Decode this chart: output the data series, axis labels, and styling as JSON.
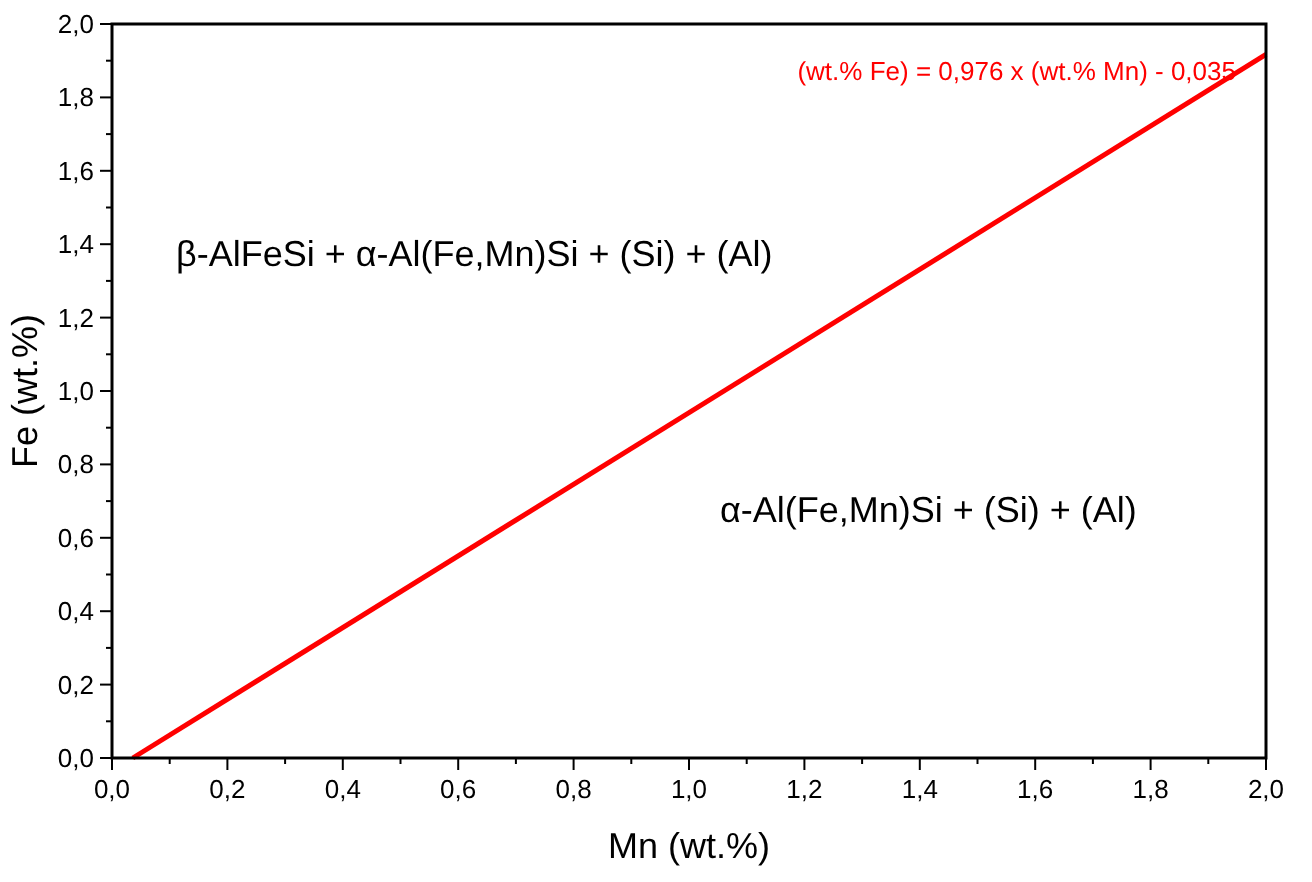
{
  "chart_data": {
    "type": "line",
    "xlabel": "Mn (wt.%)",
    "ylabel": "Fe (wt.%)",
    "x": [
      0.036,
      2.0
    ],
    "series": [
      {
        "color": "#ff0000",
        "values": [
          0,
          1.917
        ]
      }
    ],
    "xlim": [
      0,
      2
    ],
    "ylim": [
      0,
      2
    ],
    "xticks": [
      {
        "value": 0,
        "label": "0,0"
      },
      {
        "value": 0.1,
        "label": null
      },
      {
        "value": 0.2,
        "label": "0,2"
      },
      {
        "value": 0.3,
        "label": null
      },
      {
        "value": 0.4,
        "label": "0,4"
      },
      {
        "value": 0.5,
        "label": null
      },
      {
        "value": 0.6,
        "label": "0,6"
      },
      {
        "value": 0.7,
        "label": null
      },
      {
        "value": 0.8,
        "label": "0,8"
      },
      {
        "value": 0.9,
        "label": null
      },
      {
        "value": 1.0,
        "label": "1,0"
      },
      {
        "value": 1.1,
        "label": null
      },
      {
        "value": 1.2,
        "label": "1,2"
      },
      {
        "value": 1.3,
        "label": null
      },
      {
        "value": 1.4,
        "label": "1,4"
      },
      {
        "value": 1.5,
        "label": null
      },
      {
        "value": 1.6,
        "label": "1,6"
      },
      {
        "value": 1.7,
        "label": null
      },
      {
        "value": 1.8,
        "label": "1,8"
      },
      {
        "value": 1.9,
        "label": null
      },
      {
        "value": 2.0,
        "label": "2,0"
      }
    ],
    "yticks": [
      {
        "value": 0,
        "label": "0,0"
      },
      {
        "value": 0.1,
        "label": null
      },
      {
        "value": 0.2,
        "label": "0,2"
      },
      {
        "value": 0.3,
        "label": null
      },
      {
        "value": 0.4,
        "label": "0,4"
      },
      {
        "value": 0.5,
        "label": null
      },
      {
        "value": 0.6,
        "label": "0,6"
      },
      {
        "value": 0.7,
        "label": null
      },
      {
        "value": 0.8,
        "label": "0,8"
      },
      {
        "value": 0.9,
        "label": null
      },
      {
        "value": 1.0,
        "label": "1,0"
      },
      {
        "value": 1.1,
        "label": null
      },
      {
        "value": 1.2,
        "label": "1,2"
      },
      {
        "value": 1.3,
        "label": null
      },
      {
        "value": 1.4,
        "label": "1,4"
      },
      {
        "value": 1.5,
        "label": null
      },
      {
        "value": 1.6,
        "label": "1,6"
      },
      {
        "value": 1.7,
        "label": null
      },
      {
        "value": 1.8,
        "label": "1,8"
      },
      {
        "value": 1.9,
        "label": null
      },
      {
        "value": 2.0,
        "label": "2,0"
      }
    ],
    "grid": false,
    "marker": "none",
    "line_style": "solid",
    "annotations": [
      "(wt.% Fe) = 0,976 x (wt.% Mn) - 0,035",
      "β-AlFeSi + α-Al(Fe,Mn)Si + (Si) + (Al)",
      "α-Al(Fe,Mn)Si + (Si) + (Al)"
    ]
  }
}
